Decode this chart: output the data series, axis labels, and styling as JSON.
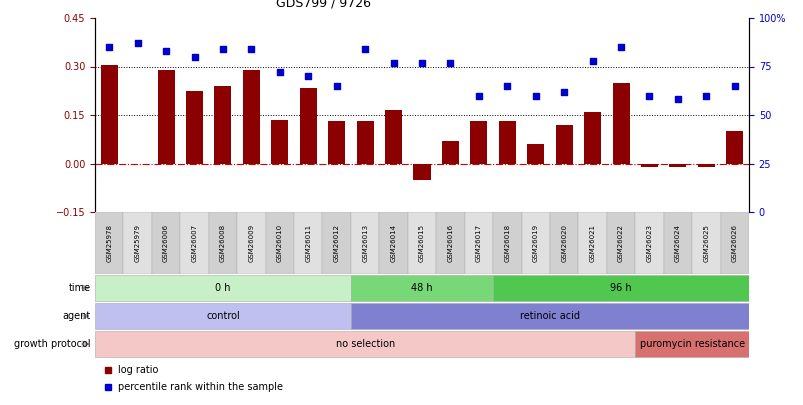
{
  "title": "GDS799 / 9726",
  "samples": [
    "GSM25978",
    "GSM25979",
    "GSM26006",
    "GSM26007",
    "GSM26008",
    "GSM26009",
    "GSM26010",
    "GSM26011",
    "GSM26012",
    "GSM26013",
    "GSM26014",
    "GSM26015",
    "GSM26016",
    "GSM26017",
    "GSM26018",
    "GSM26019",
    "GSM26020",
    "GSM26021",
    "GSM26022",
    "GSM26023",
    "GSM26024",
    "GSM26025",
    "GSM26026"
  ],
  "log_ratio": [
    0.305,
    0.0,
    0.29,
    0.225,
    0.24,
    0.29,
    0.135,
    0.235,
    0.13,
    0.13,
    0.165,
    -0.05,
    0.07,
    0.13,
    0.13,
    0.06,
    0.12,
    0.16,
    0.25,
    -0.01,
    -0.01,
    -0.01,
    0.1
  ],
  "percentile_raw": [
    85,
    87,
    83,
    80,
    84,
    84,
    72,
    70,
    65,
    84,
    77,
    77,
    77,
    60,
    65,
    60,
    62,
    78,
    85,
    60,
    58,
    60,
    65
  ],
  "bar_color": "#8b0000",
  "dot_color": "#0000cc",
  "ylim_left": [
    -0.15,
    0.45
  ],
  "ylim_right": [
    0,
    100
  ],
  "yticks_left": [
    -0.15,
    0.0,
    0.15,
    0.3,
    0.45
  ],
  "yticks_right": [
    0,
    25,
    50,
    75,
    100
  ],
  "hlines": [
    0.15,
    0.3
  ],
  "bg_color": "#ffffff",
  "xtick_bg": "#d8d8d8",
  "time_groups": [
    {
      "label": "0 h",
      "start": 0,
      "end": 9,
      "color": "#c8f0c8"
    },
    {
      "label": "48 h",
      "start": 9,
      "end": 14,
      "color": "#78d878"
    },
    {
      "label": "96 h",
      "start": 14,
      "end": 23,
      "color": "#50c850"
    }
  ],
  "agent_groups": [
    {
      "label": "control",
      "start": 0,
      "end": 9,
      "color": "#c0c0f0"
    },
    {
      "label": "retinoic acid",
      "start": 9,
      "end": 23,
      "color": "#8080d0"
    }
  ],
  "growth_groups": [
    {
      "label": "no selection",
      "start": 0,
      "end": 19,
      "color": "#f5c8c8"
    },
    {
      "label": "puromycin resistance",
      "start": 19,
      "end": 23,
      "color": "#d87070"
    }
  ]
}
